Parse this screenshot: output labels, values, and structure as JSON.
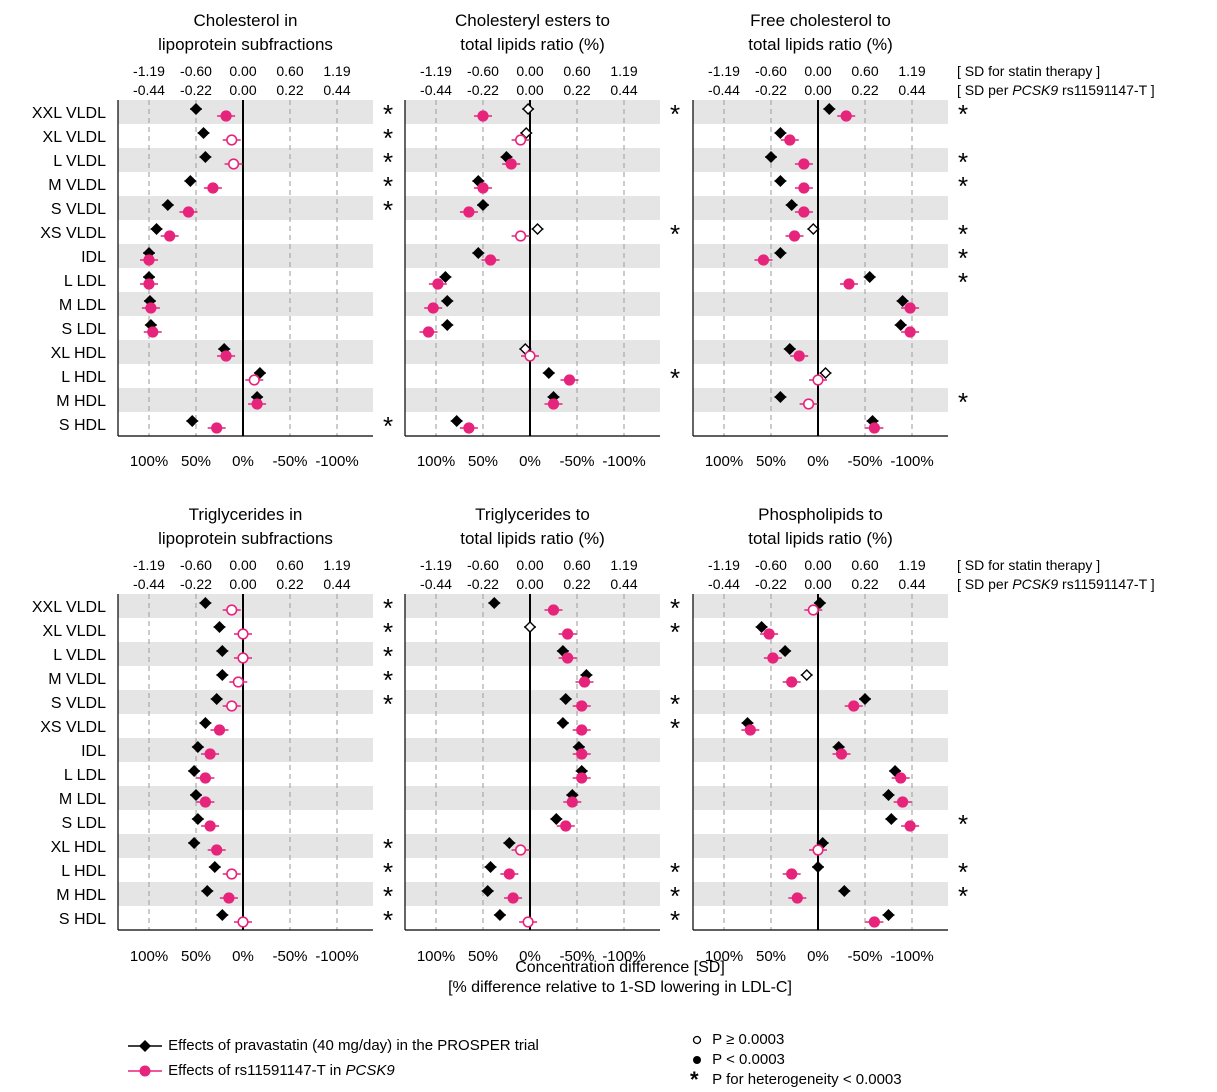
{
  "colors": {
    "statin": "#000000",
    "pcsk9": "#e6247c",
    "stripe": "#e5e5e5",
    "grid": "#9a9a9a",
    "star": "#555555"
  },
  "axis": {
    "statin_unit_label": "[ SD for statin therapy ]",
    "pcsk9_unit_label_prefix": "[ SD per ",
    "pcsk9_unit_label_gene": "PCSK9",
    "pcsk9_unit_label_suffix": " rs11591147-T ]",
    "xlabel_line1": "Concentration difference [SD]",
    "xlabel_line2": "[% difference relative to 1-SD lowering in LDL-C]"
  },
  "legend": {
    "statin_label": "Effects of pravastatin (40 mg/day) in the PROSPER trial",
    "pcsk9_label_prefix": "Effects of rs11591147-T in ",
    "pcsk9_label_gene": "PCSK9",
    "open_label": "P ≥ 0.0003",
    "filled_label": "P < 0.0003",
    "star_symbol": "*",
    "star_label": "P for heterogeneity < 0.0003"
  },
  "chart_data": [
    {
      "type": "scatter",
      "title": [
        "Cholesterol in",
        "lipoprotein subfractions"
      ],
      "categories": [
        "XXL VLDL",
        "XL VLDL",
        "L VLDL",
        "M VLDL",
        "S VLDL",
        "XS VLDL",
        "IDL",
        "L LDL",
        "M LDL",
        "S LDL",
        "XL HDL",
        "L HDL",
        "M HDL",
        "S HDL"
      ],
      "x_ticks_top_statin": [
        "-1.19",
        "-0.60",
        "0.00",
        "0.60",
        "1.19"
      ],
      "x_ticks_top_pcsk9": [
        "-0.44",
        "-0.22",
        "0.00",
        "0.22",
        "0.44"
      ],
      "x_ticks_bottom": [
        "100%",
        "50%",
        "0%",
        "-50%",
        "-100%"
      ],
      "xlim_percent": [
        125,
        -125
      ],
      "series": [
        {
          "name": "Effects of pravastatin (40 mg/day) in the PROSPER trial",
          "marker": "diamond",
          "values": [
            50,
            42,
            40,
            56,
            80,
            92,
            100,
            100,
            99,
            98,
            20,
            -18,
            -15,
            54
          ],
          "significant": [
            true,
            true,
            true,
            true,
            true,
            true,
            true,
            true,
            true,
            true,
            true,
            true,
            true,
            true
          ]
        },
        {
          "name": "Effects of rs11591147-T in PCSK9",
          "marker": "circle",
          "values": [
            18,
            12,
            10,
            32,
            58,
            78,
            100,
            100,
            98,
            96,
            18,
            -12,
            -15,
            28
          ],
          "significant": [
            true,
            false,
            false,
            true,
            true,
            true,
            true,
            true,
            true,
            true,
            true,
            false,
            true,
            true
          ]
        }
      ],
      "heterogeneity": [
        true,
        true,
        true,
        true,
        true,
        false,
        false,
        false,
        false,
        false,
        false,
        false,
        false,
        true
      ]
    },
    {
      "type": "scatter",
      "title": [
        "Cholesteryl esters to",
        "total lipids ratio (%)"
      ],
      "categories": [
        "XXL VLDL",
        "XL VLDL",
        "L VLDL",
        "M VLDL",
        "S VLDL",
        "XS VLDL",
        "IDL",
        "L LDL",
        "M LDL",
        "S LDL",
        "XL HDL",
        "L HDL",
        "M HDL",
        "S HDL"
      ],
      "x_ticks_top_statin": [
        "-1.19",
        "-0.60",
        "0.00",
        "0.60",
        "1.19"
      ],
      "x_ticks_top_pcsk9": [
        "-0.44",
        "-0.22",
        "0.00",
        "0.22",
        "0.44"
      ],
      "x_ticks_bottom": [
        "100%",
        "50%",
        "0%",
        "-50%",
        "-100%"
      ],
      "xlim_percent": [
        125,
        -125
      ],
      "series": [
        {
          "name": "Effects of pravastatin (40 mg/day) in the PROSPER trial",
          "marker": "diamond",
          "values": [
            2,
            4,
            25,
            55,
            50,
            -8,
            55,
            90,
            88,
            88,
            5,
            -20,
            -25,
            78
          ],
          "significant": [
            false,
            false,
            true,
            true,
            true,
            false,
            true,
            true,
            true,
            true,
            false,
            true,
            true,
            true
          ]
        },
        {
          "name": "Effects of rs11591147-T in PCSK9",
          "marker": "circle",
          "values": [
            50,
            10,
            20,
            50,
            65,
            10,
            42,
            98,
            103,
            108,
            0,
            -42,
            -25,
            65
          ],
          "significant": [
            true,
            false,
            true,
            true,
            true,
            false,
            true,
            true,
            true,
            true,
            false,
            true,
            true,
            true
          ]
        }
      ],
      "heterogeneity": [
        true,
        false,
        false,
        false,
        false,
        true,
        false,
        false,
        false,
        false,
        false,
        true,
        false,
        false
      ]
    },
    {
      "type": "scatter",
      "title": [
        "Free cholesterol to",
        "total lipids ratio (%)"
      ],
      "categories": [
        "XXL VLDL",
        "XL VLDL",
        "L VLDL",
        "M VLDL",
        "S VLDL",
        "XS VLDL",
        "IDL",
        "L LDL",
        "M LDL",
        "S LDL",
        "XL HDL",
        "L HDL",
        "M HDL",
        "S HDL"
      ],
      "x_ticks_top_statin": [
        "-1.19",
        "-0.60",
        "0.00",
        "0.60",
        "1.19"
      ],
      "x_ticks_top_pcsk9": [
        "-0.44",
        "-0.22",
        "0.00",
        "0.22",
        "0.44"
      ],
      "x_ticks_bottom": [
        "100%",
        "50%",
        "0%",
        "-50%",
        "-100%"
      ],
      "xlim_percent": [
        125,
        -125
      ],
      "series": [
        {
          "name": "Effects of pravastatin (40 mg/day) in the PROSPER trial",
          "marker": "diamond",
          "values": [
            -12,
            40,
            50,
            40,
            28,
            5,
            40,
            -55,
            -90,
            -88,
            30,
            -8,
            40,
            -58
          ],
          "significant": [
            true,
            true,
            true,
            true,
            true,
            false,
            true,
            true,
            true,
            true,
            true,
            false,
            true,
            true
          ]
        },
        {
          "name": "Effects of rs11591147-T in PCSK9",
          "marker": "circle",
          "values": [
            -30,
            30,
            15,
            15,
            15,
            25,
            58,
            -33,
            -98,
            -98,
            20,
            0,
            10,
            -60
          ],
          "significant": [
            true,
            true,
            true,
            true,
            true,
            true,
            true,
            true,
            true,
            true,
            true,
            false,
            false,
            true
          ]
        }
      ],
      "heterogeneity": [
        true,
        false,
        true,
        true,
        false,
        true,
        true,
        true,
        false,
        false,
        false,
        false,
        true,
        false
      ]
    },
    {
      "type": "scatter",
      "title": [
        "Triglycerides in",
        "lipoprotein subfractions"
      ],
      "categories": [
        "XXL VLDL",
        "XL VLDL",
        "L VLDL",
        "M VLDL",
        "S VLDL",
        "XS VLDL",
        "IDL",
        "L LDL",
        "M LDL",
        "S LDL",
        "XL HDL",
        "L HDL",
        "M HDL",
        "S HDL"
      ],
      "x_ticks_top_statin": [
        "-1.19",
        "-0.60",
        "0.00",
        "0.60",
        "1.19"
      ],
      "x_ticks_top_pcsk9": [
        "-0.44",
        "-0.22",
        "0.00",
        "0.22",
        "0.44"
      ],
      "x_ticks_bottom": [
        "100%",
        "50%",
        "0%",
        "-50%",
        "-100%"
      ],
      "xlim_percent": [
        125,
        -125
      ],
      "series": [
        {
          "name": "Effects of pravastatin (40 mg/day) in the PROSPER trial",
          "marker": "diamond",
          "values": [
            40,
            25,
            22,
            22,
            28,
            40,
            48,
            52,
            50,
            48,
            52,
            30,
            38,
            22
          ],
          "significant": [
            true,
            true,
            true,
            true,
            true,
            true,
            true,
            true,
            true,
            true,
            true,
            true,
            true,
            true
          ]
        },
        {
          "name": "Effects of rs11591147-T in PCSK9",
          "marker": "circle",
          "values": [
            12,
            0,
            0,
            5,
            12,
            25,
            35,
            40,
            40,
            35,
            28,
            12,
            15,
            0
          ],
          "significant": [
            false,
            false,
            false,
            false,
            false,
            true,
            true,
            true,
            true,
            true,
            true,
            false,
            true,
            false
          ]
        }
      ],
      "heterogeneity": [
        true,
        true,
        true,
        true,
        true,
        false,
        false,
        false,
        false,
        false,
        true,
        true,
        true,
        true
      ]
    },
    {
      "type": "scatter",
      "title": [
        "Triglycerides to",
        "total lipids ratio (%)"
      ],
      "categories": [
        "XXL VLDL",
        "XL VLDL",
        "L VLDL",
        "M VLDL",
        "S VLDL",
        "XS VLDL",
        "IDL",
        "L LDL",
        "M LDL",
        "S LDL",
        "XL HDL",
        "L HDL",
        "M HDL",
        "S HDL"
      ],
      "x_ticks_top_statin": [
        "-1.19",
        "-0.60",
        "0.00",
        "0.60",
        "1.19"
      ],
      "x_ticks_top_pcsk9": [
        "-0.44",
        "-0.22",
        "0.00",
        "0.22",
        "0.44"
      ],
      "x_ticks_bottom": [
        "100%",
        "50%",
        "0%",
        "-50%",
        "-100%"
      ],
      "xlim_percent": [
        125,
        -125
      ],
      "series": [
        {
          "name": "Effects of pravastatin (40 mg/day) in the PROSPER trial",
          "marker": "diamond",
          "values": [
            38,
            0,
            -35,
            -60,
            -38,
            -35,
            -52,
            -55,
            -45,
            -28,
            22,
            42,
            45,
            32
          ],
          "significant": [
            true,
            false,
            true,
            true,
            true,
            true,
            true,
            true,
            true,
            true,
            true,
            true,
            true,
            true
          ]
        },
        {
          "name": "Effects of rs11591147-T in PCSK9",
          "marker": "circle",
          "values": [
            -25,
            -40,
            -40,
            -58,
            -55,
            -55,
            -55,
            -55,
            -45,
            -38,
            10,
            22,
            18,
            2
          ],
          "significant": [
            true,
            true,
            true,
            true,
            true,
            true,
            true,
            true,
            true,
            true,
            false,
            true,
            true,
            false
          ]
        }
      ],
      "heterogeneity": [
        true,
        true,
        false,
        false,
        true,
        true,
        false,
        false,
        false,
        false,
        false,
        true,
        true,
        true
      ]
    },
    {
      "type": "scatter",
      "title": [
        "Phospholipids to",
        "total lipids ratio (%)"
      ],
      "categories": [
        "XXL VLDL",
        "XL VLDL",
        "L VLDL",
        "M VLDL",
        "S VLDL",
        "XS VLDL",
        "IDL",
        "L LDL",
        "M LDL",
        "S LDL",
        "XL HDL",
        "L HDL",
        "M HDL",
        "S HDL"
      ],
      "x_ticks_top_statin": [
        "-1.19",
        "-0.60",
        "0.00",
        "0.60",
        "1.19"
      ],
      "x_ticks_top_pcsk9": [
        "-0.44",
        "-0.22",
        "0.00",
        "0.22",
        "0.44"
      ],
      "x_ticks_bottom": [
        "100%",
        "50%",
        "0%",
        "-50%",
        "-100%"
      ],
      "xlim_percent": [
        125,
        -125
      ],
      "series": [
        {
          "name": "Effects of pravastatin (40 mg/day) in the PROSPER trial",
          "marker": "diamond",
          "values": [
            -2,
            60,
            35,
            12,
            -50,
            75,
            -22,
            -82,
            -75,
            -78,
            -5,
            0,
            -28,
            -75
          ],
          "significant": [
            true,
            true,
            true,
            false,
            true,
            true,
            true,
            true,
            true,
            true,
            true,
            true,
            true,
            true
          ]
        },
        {
          "name": "Effects of rs11591147-T in PCSK9",
          "marker": "circle",
          "values": [
            5,
            52,
            48,
            28,
            -38,
            72,
            -25,
            -88,
            -90,
            -98,
            0,
            28,
            22,
            -60
          ],
          "significant": [
            false,
            true,
            true,
            true,
            true,
            true,
            true,
            true,
            true,
            true,
            false,
            true,
            true,
            true
          ]
        }
      ],
      "heterogeneity": [
        false,
        false,
        false,
        false,
        false,
        false,
        false,
        false,
        false,
        true,
        false,
        true,
        true,
        false
      ]
    }
  ]
}
